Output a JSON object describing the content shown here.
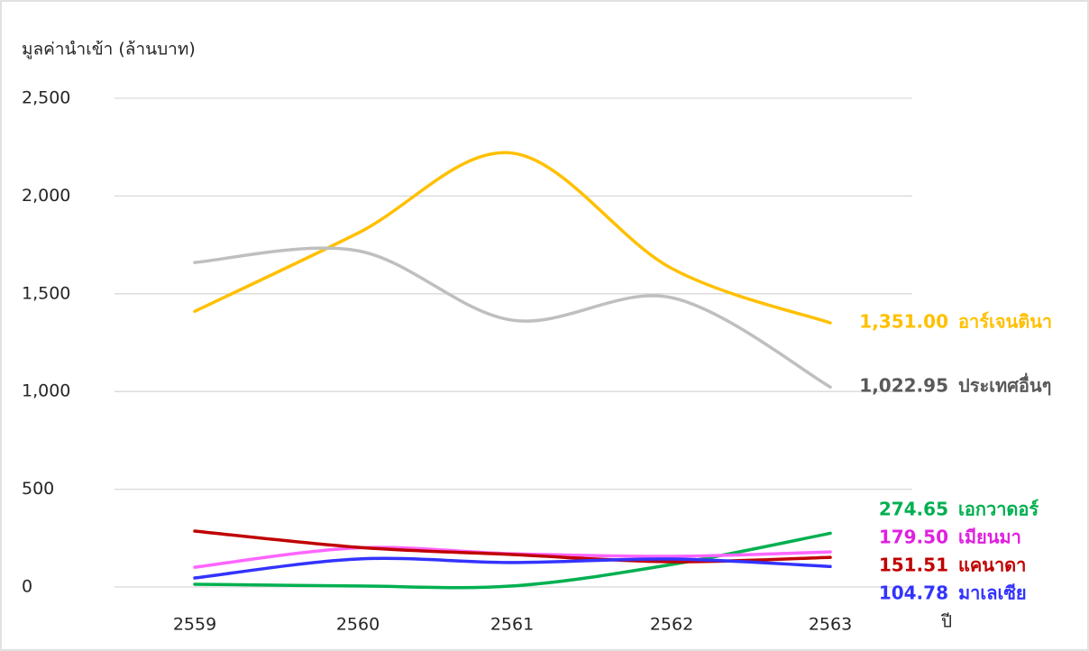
{
  "chart_data": {
    "type": "line",
    "y_label": "มูลค่านำเข้า (ล้านบาท)",
    "x_label": "ปี",
    "categories": [
      "2559",
      "2560",
      "2561",
      "2562",
      "2563"
    ],
    "ylim": [
      0,
      2500
    ],
    "yticks": [
      0,
      500,
      {
        "value": 1000,
        "label": "1,000"
      },
      {
        "value": 1500,
        "label": "1,500"
      },
      {
        "value": 2000,
        "label": "2,000"
      },
      {
        "value": 2500,
        "label": "2,500"
      }
    ],
    "grid": true,
    "smooth": true,
    "series": [
      {
        "name": "อาร์เจนตินา",
        "color": "#ffc000",
        "values": [
          1410,
          1810,
          2220,
          1630,
          1351.0
        ],
        "value_labels": [
          null,
          null,
          null,
          null,
          "1,351.00"
        ]
      },
      {
        "name": "ประเทศอื่นๆ",
        "color": "#bfbfbf",
        "label_color": "#595959",
        "values": [
          1660,
          1720,
          1365,
          1480,
          1022.95
        ],
        "value_labels": [
          null,
          null,
          null,
          null,
          "1,022.95"
        ]
      },
      {
        "name": "เอกวาดอร์",
        "color": "#00b050",
        "values": [
          14,
          5,
          5,
          115,
          274.65
        ],
        "value_labels": [
          null,
          null,
          null,
          null,
          "274.65"
        ]
      },
      {
        "name": "เมียนมา",
        "color": "#ff66ff",
        "label_color": "#e020e0",
        "values": [
          101,
          200,
          170,
          157,
          179.5
        ],
        "value_labels": [
          null,
          null,
          null,
          null,
          "179.50"
        ]
      },
      {
        "name": "แคนาดา",
        "color": "#c00000",
        "values": [
          286,
          203,
          166,
          129,
          151.51
        ],
        "value_labels": [
          null,
          null,
          null,
          null,
          "151.51"
        ]
      },
      {
        "name": "มาเลเซีย",
        "color": "#3333ff",
        "values": [
          46,
          143,
          125,
          143,
          104.78
        ],
        "value_labels": [
          null,
          null,
          null,
          null,
          "104.78"
        ]
      }
    ]
  }
}
